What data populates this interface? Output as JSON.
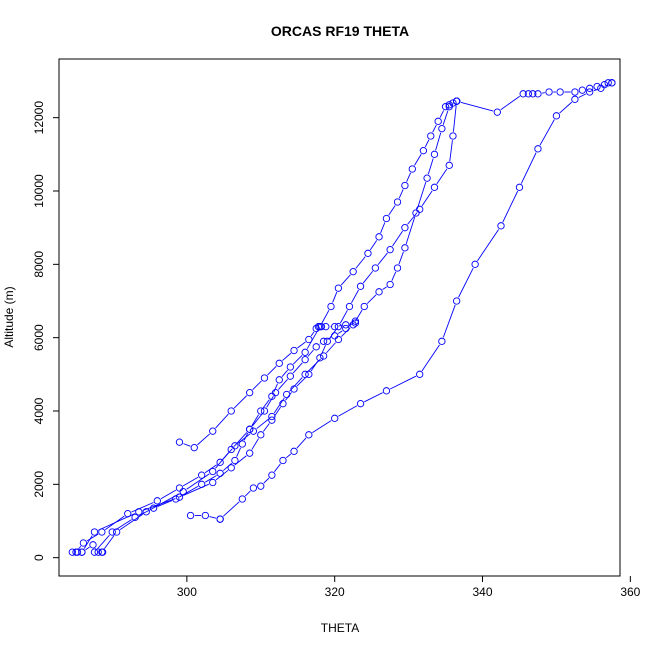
{
  "chart_data": {
    "type": "line",
    "title": "ORCAS RF19 THETA",
    "xlabel": "THETA",
    "ylabel": "Altitude (m)",
    "xlim": [
      282.7,
      358.6
    ],
    "ylim": [
      -500,
      13600
    ],
    "xticks": [
      300,
      320,
      340,
      360
    ],
    "yticks": [
      0,
      2000,
      4000,
      6000,
      8000,
      10000,
      12000
    ],
    "grid": false,
    "legend": "none",
    "color": "#0000ff",
    "marker": "open-circle",
    "series": [
      {
        "x": [
          287.5,
          289.9,
          293.0,
          295.5,
          298.5,
          302.0,
          304.5,
          306.5,
          307.5,
          308.5,
          310.0,
          311.5,
          312.5,
          314.0,
          316.0,
          318.0,
          319.5,
          320.5,
          322.5,
          324.5,
          326.0,
          327.0,
          328.5,
          329.5,
          330.5,
          332.0,
          333.0,
          334.0,
          335.0,
          335.5,
          336.0,
          336.5
        ],
        "y": [
          150,
          700,
          1100,
          1350,
          1600,
          2000,
          2300,
          2650,
          3100,
          3500,
          4000,
          4400,
          4850,
          5200,
          5600,
          6300,
          6850,
          7350,
          7800,
          8300,
          8750,
          9250,
          9700,
          10150,
          10600,
          11100,
          11500,
          11900,
          12300,
          12350,
          12400,
          12450
        ]
      },
      {
        "x": [
          336.5,
          335.5,
          334.5,
          333.5,
          332.5,
          331.0,
          329.5,
          328.5,
          327.5,
          326.0,
          324.0,
          322.5,
          320.5,
          318.5,
          316.0,
          313.5,
          311.5,
          309.0,
          306.5,
          304.5,
          302.0,
          299.0,
          296.0,
          292.0,
          288.5,
          286.0,
          285.0
        ],
        "y": [
          12450,
          12300,
          11700,
          11000,
          10350,
          9400,
          8450,
          7900,
          7450,
          7250,
          6850,
          6350,
          5950,
          5500,
          5000,
          4450,
          3850,
          3450,
          3050,
          2600,
          2250,
          1900,
          1550,
          1200,
          700,
          400,
          150
        ]
      },
      {
        "x": [
          285.8,
          287.5,
          293.5,
          299.0,
          303.5,
          306.0,
          308.5,
          310.0,
          311.5,
          313.0,
          314.5,
          316.5,
          318.0,
          319.0,
          320.5,
          322.0,
          323.5,
          325.5,
          327.5,
          329.5,
          331.5,
          333.5,
          335.5,
          336.0,
          336.5
        ],
        "y": [
          150,
          700,
          1250,
          1650,
          2050,
          2450,
          2850,
          3350,
          3750,
          4200,
          4600,
          5000,
          5450,
          5900,
          6300,
          6850,
          7400,
          7900,
          8400,
          9000,
          9500,
          10100,
          10700,
          11500,
          12450
        ]
      },
      {
        "x": [
          288.5,
          290.5,
          294.5,
          299.5,
          303.5,
          306.0,
          308.5,
          310.5,
          312.0,
          314.0,
          316.0,
          317.5,
          318.5,
          320.0,
          321.5,
          322.8
        ],
        "y": [
          150,
          700,
          1250,
          1800,
          2350,
          2950,
          3500,
          4000,
          4500,
          4950,
          5400,
          5750,
          5900,
          6050,
          6250,
          6450
        ]
      },
      {
        "x": [
          299.0,
          301.0,
          303.5,
          306.0,
          308.5,
          310.5,
          312.5,
          314.5,
          316.5,
          317.5,
          317.8,
          318.2,
          318.8,
          320.0,
          321.5,
          322.8
        ],
        "y": [
          3150,
          3000,
          3450,
          4000,
          4500,
          4900,
          5300,
          5650,
          5950,
          6250,
          6300,
          6300,
          6300,
          6300,
          6350,
          6400
        ]
      },
      {
        "x": [
          336.5,
          342.0,
          345.5,
          346.2,
          346.8,
          347.5,
          349.0,
          350.5,
          352.5,
          353.5,
          354.5,
          355.5,
          356.5,
          357.0,
          357.5
        ],
        "y": [
          12450,
          12150,
          12650,
          12650,
          12650,
          12650,
          12700,
          12700,
          12700,
          12750,
          12800,
          12850,
          12900,
          12950,
          12950
        ]
      },
      {
        "x": [
          357.5,
          356.0,
          354.5,
          352.5,
          350.0,
          347.5,
          345.0,
          342.5,
          339.0,
          336.5,
          334.5,
          331.5,
          327.0,
          323.5,
          320.0,
          316.5,
          314.5,
          313.0,
          311.5,
          310.0,
          309.0,
          307.5,
          304.5
        ],
        "y": [
          12950,
          12800,
          12700,
          12500,
          12050,
          11150,
          10100,
          9050,
          8000,
          7000,
          5900,
          5000,
          4550,
          4200,
          3800,
          3350,
          2900,
          2650,
          2250,
          1950,
          1900,
          1600,
          1050
        ]
      },
      {
        "x": [
          300.5,
          302.5,
          304.5
        ],
        "y": [
          1150,
          1150,
          1050
        ]
      },
      {
        "x": [
          284.5,
          285.2,
          285.8,
          287.3,
          288.0,
          288.6
        ],
        "y": [
          150,
          150,
          150,
          350,
          150,
          150
        ]
      }
    ]
  }
}
